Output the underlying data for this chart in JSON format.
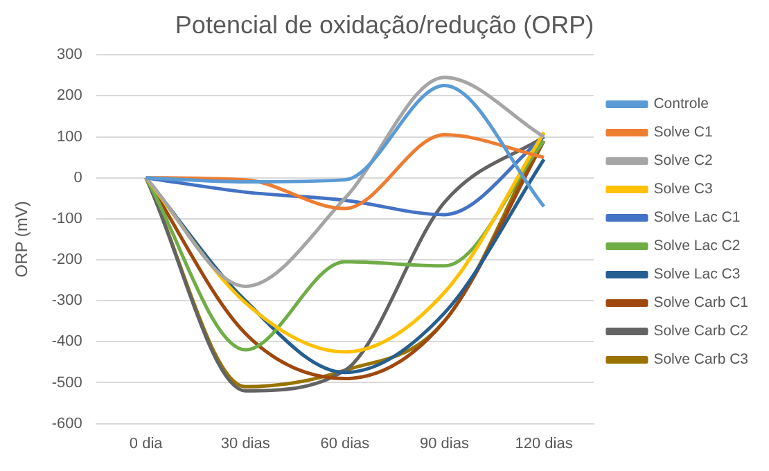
{
  "chart_data": {
    "type": "line",
    "title": "Potencial de oxidação/redução (ORP)",
    "ylabel": "ORP (mV)",
    "categories": [
      "0 dia",
      "30 dias",
      "60 dias",
      "90 dias",
      "120 dias"
    ],
    "ylim": [
      -600,
      300
    ],
    "yticks": [
      -600,
      -500,
      -400,
      -300,
      -200,
      -100,
      0,
      100,
      200,
      300
    ],
    "grid": "y",
    "legend": "right",
    "marker": "none",
    "line_style": "solid",
    "series": [
      {
        "name": "Controle",
        "color": "#5b9bd5",
        "values": [
          0,
          -10,
          -5,
          225,
          -70
        ]
      },
      {
        "name": "Solve C1",
        "color": "#ed7d31",
        "values": [
          0,
          -5,
          -75,
          105,
          50
        ]
      },
      {
        "name": "Solve C2",
        "color": "#a5a5a5",
        "values": [
          0,
          -265,
          -50,
          245,
          100
        ]
      },
      {
        "name": "Solve C3",
        "color": "#ffc000",
        "values": [
          0,
          -305,
          -425,
          -280,
          110
        ]
      },
      {
        "name": "Solve Lac C1",
        "color": "#4472c4",
        "values": [
          0,
          -35,
          -55,
          -90,
          100
        ]
      },
      {
        "name": "Solve Lac C2",
        "color": "#70ad47",
        "values": [
          0,
          -420,
          -205,
          -215,
          90
        ]
      },
      {
        "name": "Solve Lac C3",
        "color": "#255e91",
        "values": [
          0,
          -300,
          -475,
          -330,
          45
        ]
      },
      {
        "name": "Solve Carb C1",
        "color": "#9e480e",
        "values": [
          0,
          -380,
          -490,
          -350,
          90
        ]
      },
      {
        "name": "Solve Carb C2",
        "color": "#636363",
        "values": [
          0,
          -520,
          -470,
          -60,
          100
        ]
      },
      {
        "name": "Solve Carb C3",
        "color": "#997300",
        "values": [
          0,
          -510,
          -470,
          -350,
          110
        ]
      }
    ]
  }
}
